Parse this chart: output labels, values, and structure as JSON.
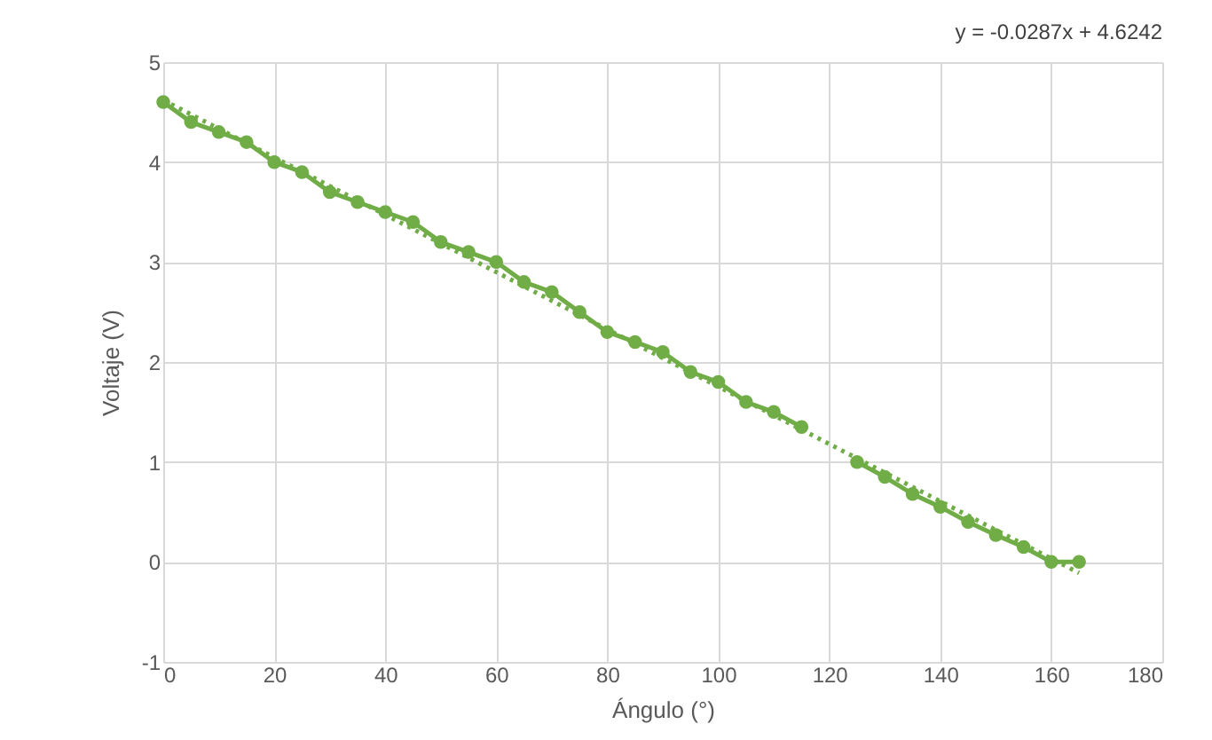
{
  "chart_data": {
    "type": "line",
    "xlabel": "Ángulo (°)",
    "ylabel": "Voltaje (V)",
    "xlim": [
      0,
      180
    ],
    "xticks": [
      0,
      20,
      40,
      60,
      80,
      100,
      120,
      140,
      160,
      180
    ],
    "ylim": [
      -1,
      5
    ],
    "yticks": [
      -1,
      0,
      1,
      2,
      3,
      4,
      5
    ],
    "grid": true,
    "annotations": [
      "y = -0.0287x + 4.6242"
    ],
    "series": [
      {
        "color": "#70ad47",
        "marker": "circle",
        "line_style": "solid",
        "x": [
          0,
          5,
          10,
          15,
          20,
          25,
          30,
          35,
          40,
          45,
          50,
          55,
          60,
          65,
          70,
          75,
          80,
          85,
          90,
          95,
          100,
          105,
          110,
          115,
          120,
          125,
          130,
          135,
          140,
          145,
          150,
          155,
          160,
          165
        ],
        "values": [
          4.6,
          4.4,
          4.3,
          4.2,
          4.0,
          3.9,
          3.7,
          3.6,
          3.5,
          3.4,
          3.2,
          3.1,
          3.0,
          2.8,
          2.7,
          2.5,
          2.3,
          2.2,
          2.1,
          1.9,
          1.8,
          1.6,
          1.5,
          1.35,
          null,
          1.0,
          0.85,
          0.68,
          0.55,
          0.4,
          0.27,
          0.15,
          0,
          0
        ]
      },
      {
        "color": "#70ad47",
        "marker": "none",
        "line_style": "dotted",
        "x": [
          0,
          165
        ],
        "values": [
          4.62,
          -0.11
        ]
      }
    ]
  }
}
